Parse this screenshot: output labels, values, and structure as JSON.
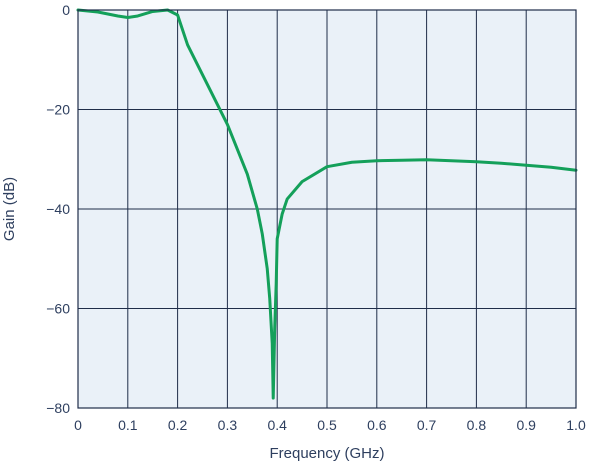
{
  "chart_data": {
    "type": "line",
    "title": "",
    "xlabel": "Frequency (GHz)",
    "ylabel": "Gain (dB)",
    "xlim": [
      0,
      1.0
    ],
    "ylim": [
      -80,
      0
    ],
    "grid": true,
    "x_ticks": [
      "0",
      "0.1",
      "0.2",
      "0.3",
      "0.4",
      "0.5",
      "0.6",
      "0.7",
      "0.8",
      "0.9",
      "1.0"
    ],
    "y_ticks": [
      "0",
      "−20",
      "−40",
      "−60",
      "−80"
    ],
    "colors": {
      "background": "#eaf1f8",
      "grid": "#1f2d49",
      "line": "#14a05a",
      "text": "#2e3f5f"
    },
    "series": [
      {
        "x": [
          0,
          0.04,
          0.08,
          0.1,
          0.12,
          0.15,
          0.18,
          0.2,
          0.22,
          0.25,
          0.28,
          0.3,
          0.32,
          0.34,
          0.36,
          0.37,
          0.38,
          0.385,
          0.39,
          0.392,
          0.395,
          0.398,
          0.4,
          0.41,
          0.42,
          0.45,
          0.5,
          0.55,
          0.6,
          0.65,
          0.7,
          0.75,
          0.8,
          0.85,
          0.9,
          0.95,
          1.0
        ],
        "y": [
          0,
          -0.4,
          -1.2,
          -1.5,
          -1.2,
          -0.3,
          0,
          -1.0,
          -7,
          -13,
          -19,
          -23,
          -28,
          -33,
          -40,
          -45,
          -52,
          -58,
          -67,
          -78,
          -64,
          -55,
          -46,
          -41,
          -38,
          -34.5,
          -31.5,
          -30.6,
          -30.3,
          -30.2,
          -30.1,
          -30.3,
          -30.5,
          -30.8,
          -31.2,
          -31.6,
          -32.2
        ]
      }
    ]
  }
}
